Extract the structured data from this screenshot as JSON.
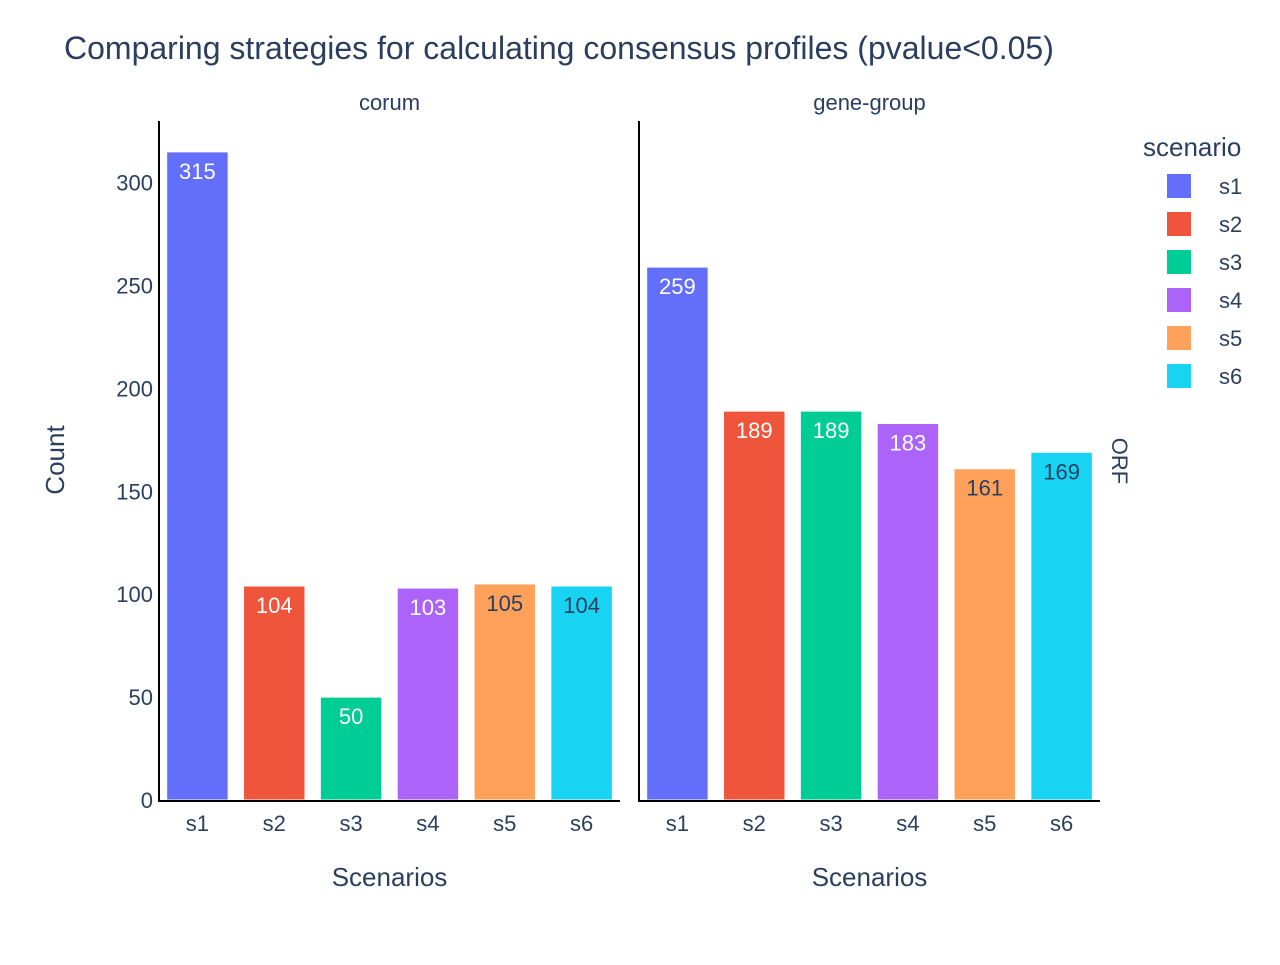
{
  "chart_data": {
    "type": "bar",
    "title": "Comparing strategies for calculating consensus profiles (pvalue<0.05)",
    "ylabel": "Count",
    "xlabel": "Scenarios",
    "row_label": "ORF",
    "ylim": [
      0,
      330
    ],
    "yticks": [
      0,
      50,
      100,
      150,
      200,
      250,
      300
    ],
    "categories": [
      "s1",
      "s2",
      "s3",
      "s4",
      "s5",
      "s6"
    ],
    "legend": {
      "title": "scenario",
      "position": "right",
      "items": [
        "s1",
        "s2",
        "s3",
        "s4",
        "s5",
        "s6"
      ]
    },
    "colors": [
      "#636efa",
      "#ef553b",
      "#00cc96",
      "#ab63fa",
      "#ffa15a",
      "#19d3f3"
    ],
    "panels": [
      {
        "name": "corum",
        "values": [
          315,
          104,
          50,
          103,
          105,
          104
        ]
      },
      {
        "name": "gene-group",
        "values": [
          259,
          189,
          189,
          183,
          161,
          169
        ]
      }
    ]
  }
}
